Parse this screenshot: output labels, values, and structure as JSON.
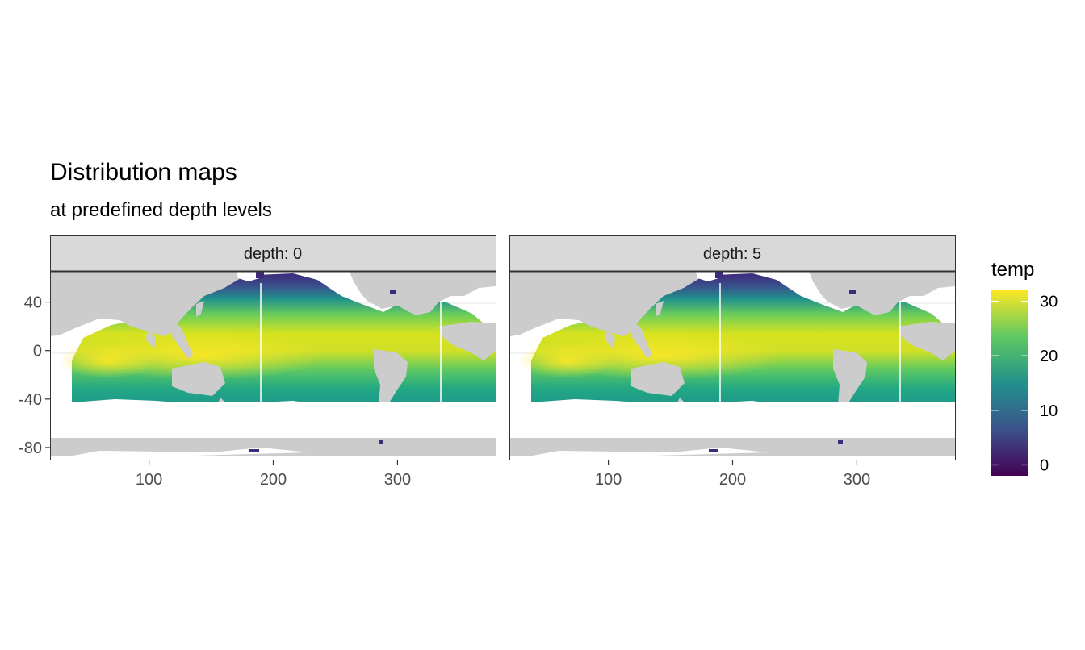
{
  "title": "Distribution maps",
  "subtitle": "at predefined depth levels",
  "colors": {
    "ocean_scale": [
      "#440154",
      "#3b528b",
      "#21918c",
      "#5ec962",
      "#fde725"
    ],
    "land": "#cccccc",
    "strip_fill": "#d9d9d9",
    "panel_border": "#333333",
    "grid": "#ebebeb"
  },
  "chart_data": {
    "type": "heatmap",
    "x_axis": {
      "ticks": [
        100,
        200,
        300
      ],
      "range": [
        21,
        379
      ]
    },
    "y_axis": {
      "ticks": [
        40,
        0,
        -40,
        -80
      ],
      "range": [
        -90,
        65
      ]
    },
    "panels": [
      {
        "strip": "depth: 0",
        "depth": 0
      },
      {
        "strip": "depth: 5",
        "depth": 5
      }
    ],
    "legend": {
      "title": "temp",
      "ticks": [
        30,
        20,
        10,
        0
      ],
      "range": [
        -2,
        32
      ],
      "placement": "right"
    }
  }
}
